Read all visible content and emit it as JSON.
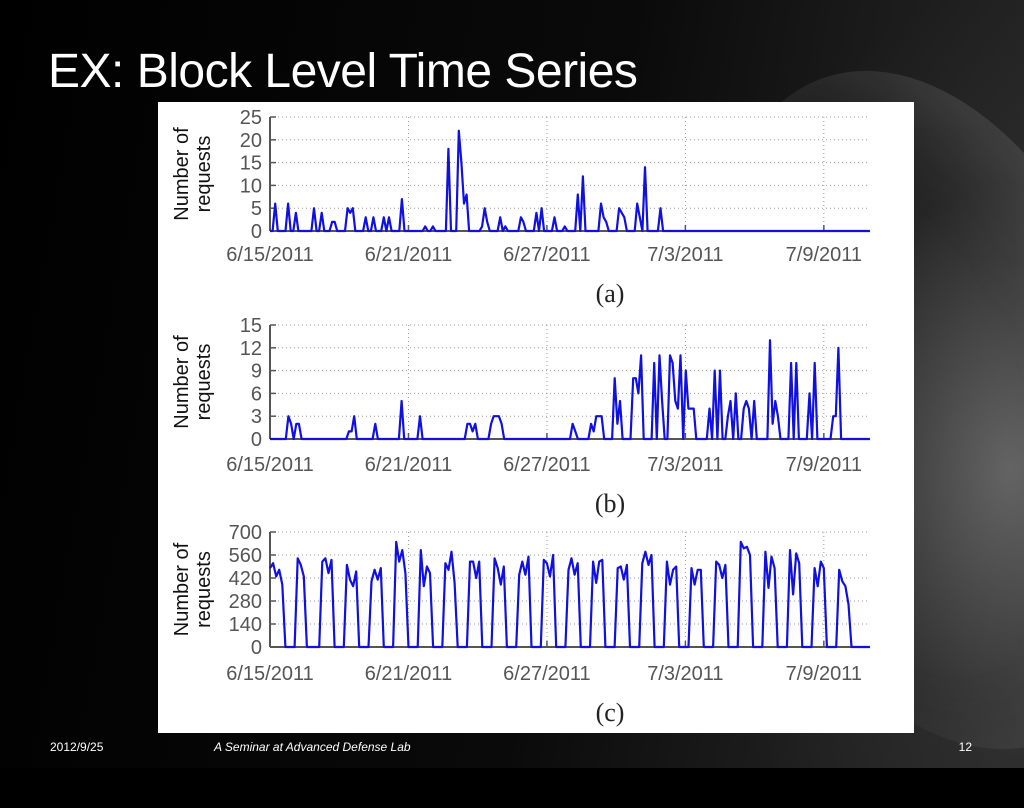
{
  "slide": {
    "title": "EX: Block Level Time Series",
    "footer_date": "2012/9/25",
    "footer_center": "A Seminar at Advanced Defense Lab",
    "page_number": "12"
  },
  "colors": {
    "line": "#1010e0",
    "grid": "#999999",
    "axis": "#555555",
    "background": "#000000"
  },
  "chart_data": [
    {
      "type": "line",
      "caption": "(a)",
      "ylabel": "Number of\nrequests",
      "xlabel": "",
      "grid": true,
      "ylim": [
        0,
        25
      ],
      "yticks": [
        "0",
        "5",
        "10",
        "15",
        "20",
        "25"
      ],
      "xlim": [
        0,
        26
      ],
      "xticks": [
        {
          "x": 0,
          "label": "6/15/2011"
        },
        {
          "x": 6,
          "label": "6/21/2011"
        },
        {
          "x": 12,
          "label": "6/27/2011"
        },
        {
          "x": 18,
          "label": "7/3/2011"
        },
        {
          "x": 24,
          "label": "7/9/2011"
        }
      ],
      "series": [
        {
          "values": [
            0,
            0,
            6,
            0,
            0,
            0,
            0,
            6,
            0,
            0,
            4,
            0,
            0,
            0,
            0,
            0,
            0,
            5,
            0,
            0,
            4,
            0,
            0,
            0,
            2,
            2,
            0,
            0,
            0,
            0,
            5,
            4,
            5,
            0,
            0,
            0,
            0,
            3,
            0,
            0,
            3,
            0,
            0,
            0,
            3,
            0,
            3,
            0,
            0,
            0,
            0,
            7,
            0,
            0,
            0,
            0,
            0,
            0,
            0,
            0,
            1,
            0,
            0,
            1,
            0,
            0,
            0,
            0,
            0,
            18,
            0,
            0,
            0,
            22,
            15,
            6,
            8,
            0,
            0,
            0,
            0,
            0,
            1,
            5,
            2,
            0,
            0,
            0,
            0,
            3,
            0,
            1,
            0,
            0,
            0,
            0,
            0,
            3,
            2,
            0,
            0,
            0,
            0,
            4,
            0,
            5,
            0,
            0,
            0,
            0,
            3,
            0,
            0,
            0,
            1,
            0,
            0,
            0,
            0,
            8,
            0,
            12,
            0,
            0,
            0,
            0,
            0,
            0,
            6,
            3,
            2,
            0,
            0,
            0,
            0,
            5,
            4,
            3,
            0,
            0,
            0,
            0,
            6,
            3,
            0,
            14,
            0,
            0,
            0,
            0,
            0,
            5,
            0,
            0,
            0,
            0,
            0,
            0,
            0,
            0,
            0,
            0,
            0,
            0,
            0,
            0,
            0,
            0,
            0,
            0,
            0,
            0,
            0,
            0,
            0,
            0,
            0,
            0,
            0,
            0,
            0,
            0,
            0,
            0,
            0,
            0,
            0,
            0,
            0,
            0,
            0,
            0,
            0,
            0,
            0,
            0,
            0,
            0,
            0,
            0,
            0,
            0,
            0,
            0,
            0,
            0,
            0,
            0,
            0,
            0,
            0,
            0,
            0,
            0,
            0,
            0,
            0,
            0,
            0,
            0,
            0,
            0,
            0,
            0,
            0,
            0,
            0,
            0,
            0,
            0,
            0,
            0,
            0
          ]
        }
      ]
    },
    {
      "type": "line",
      "caption": "(b)",
      "ylabel": "Number of\nrequests",
      "xlabel": "",
      "grid": true,
      "ylim": [
        0,
        15
      ],
      "yticks": [
        "0",
        "3",
        "6",
        "9",
        "12",
        "15"
      ],
      "xlim": [
        0,
        26
      ],
      "xticks": [
        {
          "x": 0,
          "label": "6/15/2011"
        },
        {
          "x": 6,
          "label": "6/21/2011"
        },
        {
          "x": 12,
          "label": "6/27/2011"
        },
        {
          "x": 18,
          "label": "7/3/2011"
        },
        {
          "x": 24,
          "label": "7/9/2011"
        }
      ],
      "series": [
        {
          "values": [
            0,
            0,
            0,
            0,
            0,
            0,
            0,
            3,
            2,
            0,
            2,
            2,
            0,
            0,
            0,
            0,
            0,
            0,
            0,
            0,
            0,
            0,
            0,
            0,
            0,
            0,
            0,
            0,
            0,
            0,
            1,
            1,
            3,
            0,
            0,
            0,
            0,
            0,
            0,
            0,
            2,
            0,
            0,
            0,
            0,
            0,
            0,
            0,
            0,
            0,
            5,
            0,
            0,
            0,
            0,
            0,
            0,
            3,
            0,
            0,
            0,
            0,
            0,
            0,
            0,
            0,
            0,
            0,
            0,
            0,
            0,
            0,
            0,
            0,
            0,
            2,
            2,
            1,
            2,
            0,
            0,
            0,
            0,
            0,
            2,
            3,
            3,
            3,
            2,
            0,
            0,
            0,
            0,
            0,
            0,
            0,
            0,
            0,
            0,
            0,
            0,
            0,
            0,
            0,
            0,
            0,
            0,
            0,
            0,
            0,
            0,
            0,
            0,
            0,
            0,
            2,
            1,
            0,
            0,
            0,
            0,
            0,
            2,
            1,
            3,
            3,
            3,
            0,
            0,
            0,
            0,
            8,
            2,
            5,
            0,
            0,
            0,
            0,
            8,
            8,
            6,
            11,
            0,
            0,
            0,
            0,
            10,
            0,
            11,
            5,
            0,
            0,
            11,
            10,
            5,
            4,
            11,
            0,
            9,
            4,
            4,
            4,
            0,
            0,
            0,
            0,
            0,
            4,
            0,
            9,
            0,
            9,
            0,
            0,
            3,
            5,
            0,
            6,
            0,
            0,
            4,
            5,
            4,
            0,
            5,
            0,
            0,
            0,
            0,
            0,
            13,
            2,
            5,
            3,
            0,
            0,
            0,
            0,
            10,
            0,
            10,
            0,
            0,
            0,
            0,
            6,
            0,
            10,
            0,
            0,
            0,
            0,
            0,
            0,
            3,
            3,
            12,
            0,
            0,
            0,
            0,
            0,
            0,
            0,
            0,
            0,
            0,
            0,
            0
          ]
        }
      ]
    },
    {
      "type": "line",
      "caption": "(c)",
      "ylabel": "Number of\nrequests",
      "xlabel": "",
      "grid": true,
      "ylim": [
        0,
        700
      ],
      "yticks": [
        "0",
        "140",
        "280",
        "420",
        "560",
        "700"
      ],
      "xlim": [
        0,
        26
      ],
      "xticks": [
        {
          "x": 0,
          "label": "6/15/2011"
        },
        {
          "x": 6,
          "label": "6/21/2011"
        },
        {
          "x": 12,
          "label": "6/27/2011"
        },
        {
          "x": 18,
          "label": "7/3/2011"
        },
        {
          "x": 24,
          "label": "7/9/2011"
        }
      ],
      "series": [
        {
          "values": [
            480,
            510,
            430,
            470,
            380,
            0,
            0,
            0,
            0,
            540,
            500,
            430,
            0,
            0,
            0,
            0,
            0,
            520,
            540,
            450,
            530,
            0,
            0,
            0,
            0,
            500,
            410,
            370,
            460,
            0,
            0,
            0,
            0,
            400,
            470,
            410,
            480,
            0,
            0,
            0,
            0,
            640,
            520,
            590,
            450,
            0,
            0,
            0,
            0,
            590,
            370,
            490,
            450,
            0,
            0,
            0,
            0,
            510,
            470,
            580,
            390,
            0,
            0,
            0,
            0,
            520,
            520,
            420,
            520,
            0,
            0,
            0,
            0,
            540,
            480,
            380,
            490,
            0,
            0,
            0,
            0,
            440,
            520,
            440,
            550,
            0,
            0,
            0,
            0,
            530,
            510,
            430,
            560,
            0,
            0,
            0,
            0,
            470,
            540,
            440,
            510,
            0,
            0,
            0,
            0,
            520,
            390,
            520,
            530,
            0,
            0,
            0,
            0,
            480,
            490,
            410,
            500,
            0,
            0,
            0,
            0,
            510,
            580,
            500,
            560,
            0,
            0,
            0,
            0,
            520,
            380,
            470,
            490,
            0,
            0,
            0,
            0,
            480,
            380,
            470,
            470,
            0,
            0,
            0,
            0,
            520,
            500,
            420,
            500,
            0,
            0,
            0,
            0,
            640,
            600,
            610,
            560,
            0,
            0,
            0,
            0,
            580,
            360,
            550,
            480,
            0,
            0,
            0,
            0,
            590,
            320,
            570,
            510,
            0,
            0,
            0,
            0,
            480,
            370,
            520,
            480,
            0,
            0,
            0,
            0,
            470,
            400,
            370,
            260,
            0,
            0,
            0,
            0,
            0,
            0,
            0
          ]
        }
      ]
    }
  ]
}
